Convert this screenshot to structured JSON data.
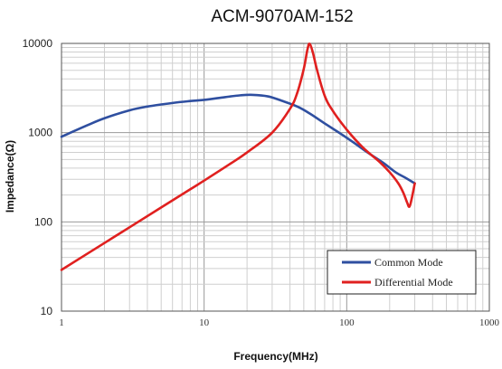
{
  "chart_data": {
    "type": "line",
    "title": "ACM-9070AM-152",
    "xlabel": "Frequency(MHz)",
    "ylabel": "Impedance(Ω)",
    "xscale": "log",
    "yscale": "log",
    "xlim": [
      1,
      1000
    ],
    "ylim": [
      10,
      10000
    ],
    "xticks": [
      "1",
      "10",
      "100",
      "1000"
    ],
    "yticks": [
      "10",
      "100",
      "1000",
      "10000"
    ],
    "grid": true,
    "legend_position": "bottom-right",
    "series": [
      {
        "name": "Common Mode",
        "color": "#2f4fa0",
        "x": [
          1,
          1.5,
          2,
          3,
          4,
          6,
          8,
          10,
          14,
          18,
          22,
          28,
          35,
          45,
          55,
          70,
          90,
          110,
          140,
          180,
          220,
          260,
          300
        ],
        "y": [
          900,
          1200,
          1450,
          1780,
          1960,
          2150,
          2260,
          2330,
          2500,
          2620,
          2650,
          2550,
          2280,
          1960,
          1640,
          1270,
          980,
          790,
          600,
          460,
          360,
          310,
          270
        ]
      },
      {
        "name": "Differential Mode",
        "color": "#e0201f",
        "x": [
          1,
          2,
          3,
          5,
          8,
          10,
          15,
          20,
          30,
          40,
          45,
          50,
          53,
          55,
          58,
          62,
          70,
          80,
          100,
          130,
          170,
          200,
          230,
          250,
          265,
          275,
          285,
          300
        ],
        "y": [
          29,
          58,
          87,
          145,
          232,
          290,
          440,
          600,
          1000,
          1850,
          2800,
          5200,
          8500,
          9900,
          7800,
          5000,
          2600,
          1750,
          1080,
          680,
          470,
          360,
          270,
          210,
          165,
          148,
          180,
          270
        ]
      }
    ]
  }
}
